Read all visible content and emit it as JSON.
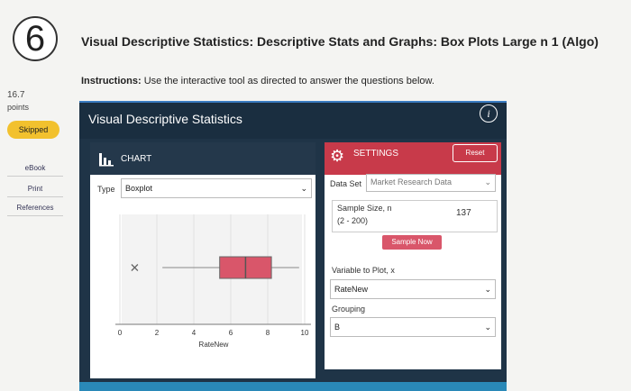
{
  "question": {
    "number": "6",
    "title": "Visual Descriptive Statistics: Descriptive Stats and Graphs: Box Plots Large n 1 (Algo)",
    "instructions_label": "Instructions:",
    "instructions": "Use the interactive tool as directed to answer the questions below."
  },
  "sidebar": {
    "points_value": "16.7",
    "points_label": "points",
    "status": "Skipped",
    "links": [
      "eBook",
      "Print",
      "References"
    ]
  },
  "tool": {
    "title": "Visual Descriptive Statistics",
    "chart_panel": {
      "header": "CHART",
      "type_label": "Type",
      "type_value": "Boxplot"
    },
    "settings_panel": {
      "header": "SETTINGS",
      "reset": "Reset",
      "data_set_label": "Data Set",
      "data_set_value": "Market Research Data",
      "sample_size_label": "Sample Size, n",
      "sample_size_range": "(2 - 200)",
      "sample_size_value": "137",
      "sample_button": "Sample Now",
      "variable_label": "Variable to Plot, x",
      "variable_value": "RateNew",
      "grouping_label": "Grouping",
      "grouping_value": "B"
    }
  },
  "chart_data": {
    "type": "boxplot",
    "xlabel": "RateNew",
    "min": 2.3,
    "q1": 5.4,
    "median": 6.8,
    "q3": 8.2,
    "max": 9.7,
    "outliers": [
      0.8
    ],
    "color": "#d9566a",
    "xlim": [
      0,
      10
    ],
    "xticks": [
      0,
      2,
      4,
      6,
      8,
      10
    ],
    "grid": true
  }
}
